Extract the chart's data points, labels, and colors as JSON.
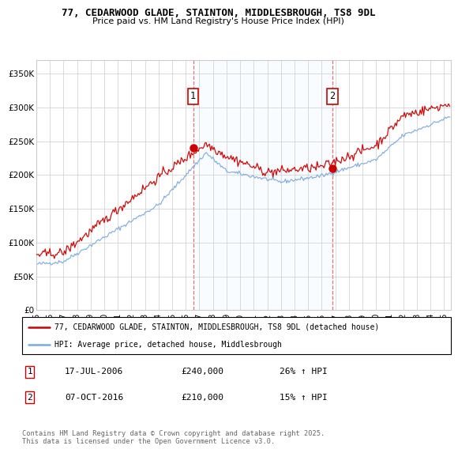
{
  "title": "77, CEDARWOOD GLADE, STAINTON, MIDDLESBROUGH, TS8 9DL",
  "subtitle": "Price paid vs. HM Land Registry's House Price Index (HPI)",
  "legend_line1": "77, CEDARWOOD GLADE, STAINTON, MIDDLESBROUGH, TS8 9DL (detached house)",
  "legend_line2": "HPI: Average price, detached house, Middlesbrough",
  "annotation1_date": "17-JUL-2006",
  "annotation1_price": "£240,000",
  "annotation1_hpi": "26% ↑ HPI",
  "annotation2_date": "07-OCT-2016",
  "annotation2_price": "£210,000",
  "annotation2_hpi": "15% ↑ HPI",
  "footer": "Contains HM Land Registry data © Crown copyright and database right 2025.\nThis data is licensed under the Open Government Licence v3.0.",
  "yticks": [
    0,
    50000,
    100000,
    150000,
    200000,
    250000,
    300000,
    350000
  ],
  "ylabels": [
    "£0",
    "£50K",
    "£100K",
    "£150K",
    "£200K",
    "£250K",
    "£300K",
    "£350K"
  ],
  "xlim_start": 1995.0,
  "xlim_end": 2025.5,
  "ylim_bottom": 0,
  "ylim_top": 370000,
  "sale1_x": 2006.54,
  "sale1_y": 240000,
  "sale2_x": 2016.77,
  "sale2_y": 210000,
  "red_color": "#cc0000",
  "blue_color": "#7aaadd",
  "shade_color": "#ddeeff",
  "dashed_color": "#dd4444",
  "bg_color": "#ffffff",
  "grid_color": "#cccccc"
}
